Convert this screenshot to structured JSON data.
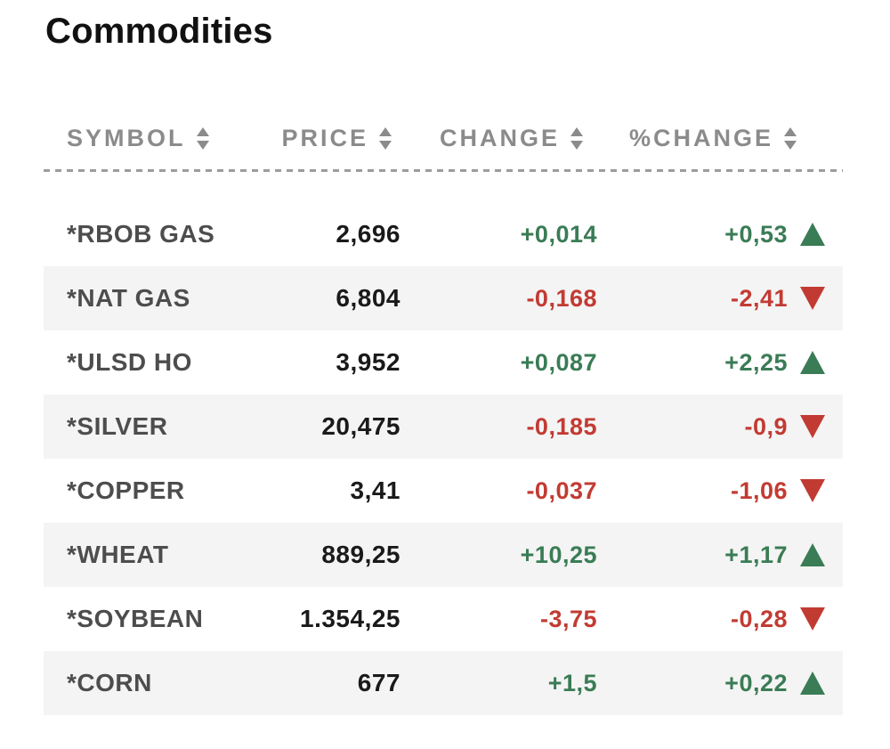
{
  "title": "Commodities",
  "colors": {
    "positive": "#3a7c55",
    "negative": "#c23b33",
    "header_text": "#8b8b8b",
    "symbol_text": "#4d4d4d",
    "price_text": "#1a1a1a",
    "row_stripe": "#f4f4f4"
  },
  "table": {
    "headers": [
      {
        "label": "SYMBOL",
        "sort_icon": "sort-updown-icon"
      },
      {
        "label": "PRICE",
        "sort_icon": "sort-updown-icon"
      },
      {
        "label": "CHANGE",
        "sort_icon": "sort-updown-icon"
      },
      {
        "label": "%CHANGE",
        "sort_icon": "sort-updown-icon"
      }
    ],
    "rows": [
      {
        "symbol": "*RBOB GAS",
        "price": "2,696",
        "change": "+0,014",
        "percent_change": "+0,53",
        "direction": "up"
      },
      {
        "symbol": "*NAT GAS",
        "price": "6,804",
        "change": "-0,168",
        "percent_change": "-2,41",
        "direction": "down"
      },
      {
        "symbol": "*ULSD HO",
        "price": "3,952",
        "change": "+0,087",
        "percent_change": "+2,25",
        "direction": "up"
      },
      {
        "symbol": "*SILVER",
        "price": "20,475",
        "change": "-0,185",
        "percent_change": "-0,9",
        "direction": "down"
      },
      {
        "symbol": "*COPPER",
        "price": "3,41",
        "change": "-0,037",
        "percent_change": "-1,06",
        "direction": "down"
      },
      {
        "symbol": "*WHEAT",
        "price": "889,25",
        "change": "+10,25",
        "percent_change": "+1,17",
        "direction": "up"
      },
      {
        "symbol": "*SOYBEAN",
        "price": "1.354,25",
        "change": "-3,75",
        "percent_change": "-0,28",
        "direction": "down"
      },
      {
        "symbol": "*CORN",
        "price": "677",
        "change": "+1,5",
        "percent_change": "+0,22",
        "direction": "up"
      }
    ]
  }
}
